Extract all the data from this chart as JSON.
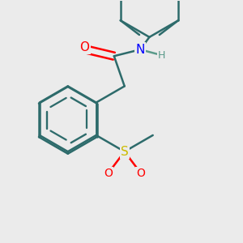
{
  "bg_color": "#ebebeb",
  "bond_color": "#2d6b6b",
  "atom_colors": {
    "O": "#ff0000",
    "N": "#0000ff",
    "S": "#ccbb00",
    "H": "#5a9a8a",
    "C": "#2d6b6b"
  },
  "line_width": 1.8,
  "font_size": 10
}
